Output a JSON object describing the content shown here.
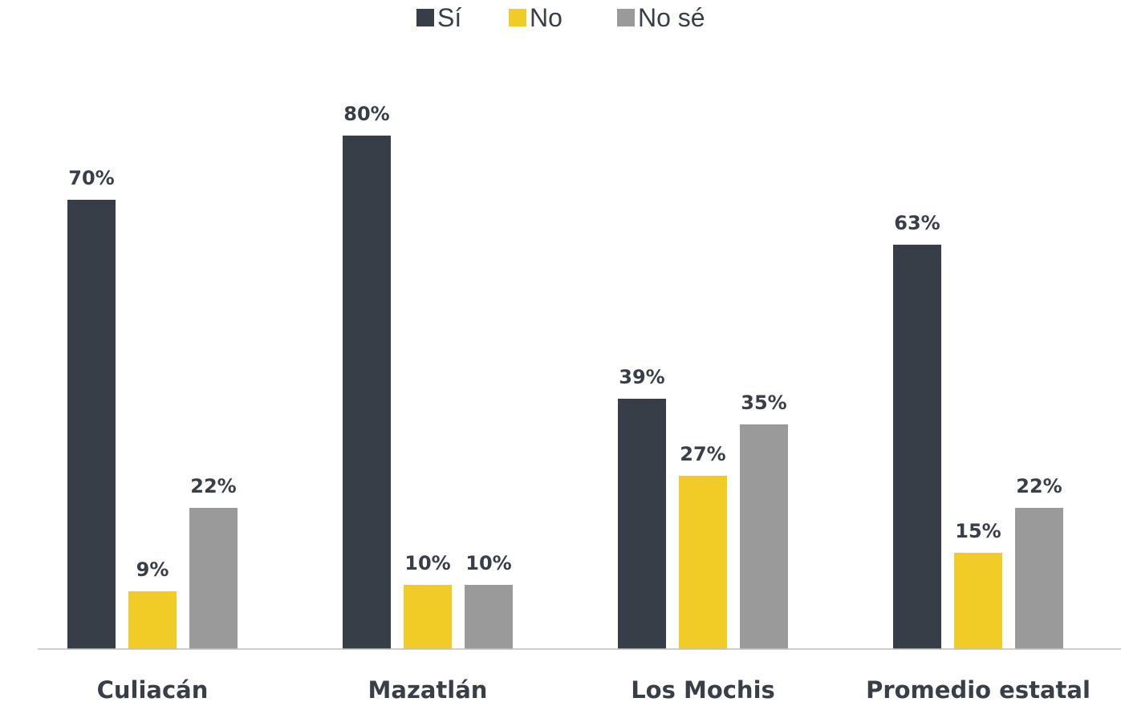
{
  "chart_data": {
    "type": "bar",
    "categories": [
      "Culiacán",
      "Mazatlán",
      "Los Mochis",
      "Promedio estatal"
    ],
    "series": [
      {
        "name": "Sí",
        "color": "#373e48",
        "values": [
          70,
          80,
          39,
          63
        ],
        "labels": [
          "70%",
          "80%",
          "39%",
          "63%"
        ]
      },
      {
        "name": "No",
        "color": "#f2cc26",
        "values": [
          9,
          10,
          27,
          15
        ],
        "labels": [
          "9%",
          "10%",
          "27%",
          "15%"
        ]
      },
      {
        "name": "No sé",
        "color": "#9a9a9b",
        "values": [
          22,
          10,
          35,
          22
        ],
        "labels": [
          "22%",
          "10%",
          "35%",
          "22%"
        ]
      }
    ],
    "unit": "%",
    "ylim": [
      0,
      100
    ],
    "grid": false,
    "legend_position": "top-center",
    "axis_color": "#bfbfbf",
    "text_color": "#3a3f47"
  }
}
